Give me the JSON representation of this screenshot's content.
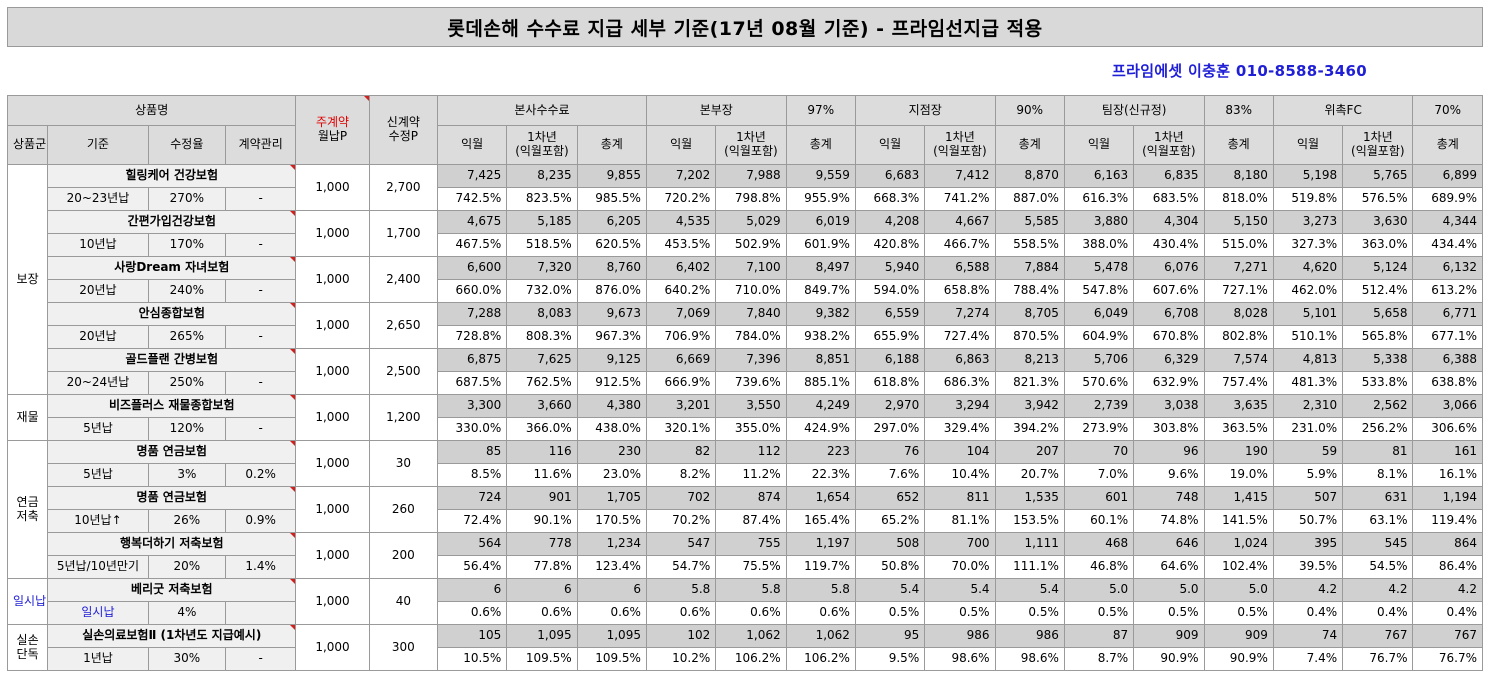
{
  "title": "롯데손해 수수료 지급 세부 기준(17년 08월 기준) - 프라임선지급 적용",
  "contact": "프라임에셋 이충훈 010-8588-3460",
  "header": {
    "product_group": "상품명",
    "subscription_line1": "주계약",
    "subscription_line2": "월납P",
    "new_contract_line1": "신계약",
    "new_contract_line2": "수정P",
    "tiers": [
      {
        "name": "본사수수료",
        "pct": ""
      },
      {
        "name": "본부장",
        "pct": "97%"
      },
      {
        "name": "지점장",
        "pct": "90%"
      },
      {
        "name": "팀장(신규정)",
        "pct": "83%"
      },
      {
        "name": "위촉FC",
        "pct": "70%"
      }
    ],
    "category": "상품군",
    "basis": "기준",
    "rate": "수정율",
    "contract_mgmt": "계약관리",
    "col_month": "익월",
    "col_first_year_line1": "1차년",
    "col_first_year_line2": "(익월포함)",
    "col_total": "총계"
  },
  "groups": [
    {
      "category": "보장",
      "products": [
        {
          "name": "힐링케어 건강보험",
          "basis": "20~23년납",
          "rate": "270%",
          "mgmt": "-",
          "premium": "1,000",
          "adjusted": "2,700",
          "amounts": [
            "7,425",
            "8,235",
            "9,855",
            "7,202",
            "7,988",
            "9,559",
            "6,683",
            "7,412",
            "8,870",
            "6,163",
            "6,835",
            "8,180",
            "5,198",
            "5,765",
            "6,899"
          ],
          "percents": [
            "742.5%",
            "823.5%",
            "985.5%",
            "720.2%",
            "798.8%",
            "955.9%",
            "668.3%",
            "741.2%",
            "887.0%",
            "616.3%",
            "683.5%",
            "818.0%",
            "519.8%",
            "576.5%",
            "689.9%"
          ]
        },
        {
          "name": "간편가입건강보험",
          "basis": "10년납",
          "rate": "170%",
          "mgmt": "-",
          "premium": "1,000",
          "adjusted": "1,700",
          "amounts": [
            "4,675",
            "5,185",
            "6,205",
            "4,535",
            "5,029",
            "6,019",
            "4,208",
            "4,667",
            "5,585",
            "3,880",
            "4,304",
            "5,150",
            "3,273",
            "3,630",
            "4,344"
          ],
          "percents": [
            "467.5%",
            "518.5%",
            "620.5%",
            "453.5%",
            "502.9%",
            "601.9%",
            "420.8%",
            "466.7%",
            "558.5%",
            "388.0%",
            "430.4%",
            "515.0%",
            "327.3%",
            "363.0%",
            "434.4%"
          ]
        },
        {
          "name": "사랑Dream 자녀보험",
          "basis": "20년납",
          "rate": "240%",
          "mgmt": "-",
          "premium": "1,000",
          "adjusted": "2,400",
          "amounts": [
            "6,600",
            "7,320",
            "8,760",
            "6,402",
            "7,100",
            "8,497",
            "5,940",
            "6,588",
            "7,884",
            "5,478",
            "6,076",
            "7,271",
            "4,620",
            "5,124",
            "6,132"
          ],
          "percents": [
            "660.0%",
            "732.0%",
            "876.0%",
            "640.2%",
            "710.0%",
            "849.7%",
            "594.0%",
            "658.8%",
            "788.4%",
            "547.8%",
            "607.6%",
            "727.1%",
            "462.0%",
            "512.4%",
            "613.2%"
          ]
        },
        {
          "name": "안심종합보험",
          "basis": "20년납",
          "rate": "265%",
          "mgmt": "-",
          "premium": "1,000",
          "adjusted": "2,650",
          "amounts": [
            "7,288",
            "8,083",
            "9,673",
            "7,069",
            "7,840",
            "9,382",
            "6,559",
            "7,274",
            "8,705",
            "6,049",
            "6,708",
            "8,028",
            "5,101",
            "5,658",
            "6,771"
          ],
          "percents": [
            "728.8%",
            "808.3%",
            "967.3%",
            "706.9%",
            "784.0%",
            "938.2%",
            "655.9%",
            "727.4%",
            "870.5%",
            "604.9%",
            "670.8%",
            "802.8%",
            "510.1%",
            "565.8%",
            "677.1%"
          ]
        },
        {
          "name": "골드플랜 간병보험",
          "basis": "20~24년납",
          "rate": "250%",
          "mgmt": "-",
          "premium": "1,000",
          "adjusted": "2,500",
          "amounts": [
            "6,875",
            "7,625",
            "9,125",
            "6,669",
            "7,396",
            "8,851",
            "6,188",
            "6,863",
            "8,213",
            "5,706",
            "6,329",
            "7,574",
            "4,813",
            "5,338",
            "6,388"
          ],
          "percents": [
            "687.5%",
            "762.5%",
            "912.5%",
            "666.9%",
            "739.6%",
            "885.1%",
            "618.8%",
            "686.3%",
            "821.3%",
            "570.6%",
            "632.9%",
            "757.4%",
            "481.3%",
            "533.8%",
            "638.8%"
          ]
        }
      ]
    },
    {
      "category": "재물",
      "products": [
        {
          "name": "비즈플러스 재물종합보험",
          "basis": "5년납",
          "rate": "120%",
          "mgmt": "-",
          "premium": "1,000",
          "adjusted": "1,200",
          "amounts": [
            "3,300",
            "3,660",
            "4,380",
            "3,201",
            "3,550",
            "4,249",
            "2,970",
            "3,294",
            "3,942",
            "2,739",
            "3,038",
            "3,635",
            "2,310",
            "2,562",
            "3,066"
          ],
          "percents": [
            "330.0%",
            "366.0%",
            "438.0%",
            "320.1%",
            "355.0%",
            "424.9%",
            "297.0%",
            "329.4%",
            "394.2%",
            "273.9%",
            "303.8%",
            "363.5%",
            "231.0%",
            "256.2%",
            "306.6%"
          ]
        }
      ]
    },
    {
      "category": "연금\n저축",
      "products": [
        {
          "name": "명품 연금보험",
          "basis": "5년납",
          "rate": "3%",
          "mgmt": "0.2%",
          "premium": "1,000",
          "adjusted": "30",
          "amounts": [
            "85",
            "116",
            "230",
            "82",
            "112",
            "223",
            "76",
            "104",
            "207",
            "70",
            "96",
            "190",
            "59",
            "81",
            "161"
          ],
          "percents": [
            "8.5%",
            "11.6%",
            "23.0%",
            "8.2%",
            "11.2%",
            "22.3%",
            "7.6%",
            "10.4%",
            "20.7%",
            "7.0%",
            "9.6%",
            "19.0%",
            "5.9%",
            "8.1%",
            "16.1%"
          ]
        },
        {
          "name": "명품 연금보험",
          "basis": "10년납↑",
          "rate": "26%",
          "mgmt": "0.9%",
          "premium": "1,000",
          "adjusted": "260",
          "amounts": [
            "724",
            "901",
            "1,705",
            "702",
            "874",
            "1,654",
            "652",
            "811",
            "1,535",
            "601",
            "748",
            "1,415",
            "507",
            "631",
            "1,194"
          ],
          "percents": [
            "72.4%",
            "90.1%",
            "170.5%",
            "70.2%",
            "87.4%",
            "165.4%",
            "65.2%",
            "81.1%",
            "153.5%",
            "60.1%",
            "74.8%",
            "141.5%",
            "50.7%",
            "63.1%",
            "119.4%"
          ]
        },
        {
          "name": "행복더하기 저축보험",
          "basis": "5년납/10년만기",
          "rate": "20%",
          "mgmt": "1.4%",
          "premium": "1,000",
          "adjusted": "200",
          "amounts": [
            "564",
            "778",
            "1,234",
            "547",
            "755",
            "1,197",
            "508",
            "700",
            "1,111",
            "468",
            "646",
            "1,024",
            "395",
            "545",
            "864"
          ],
          "percents": [
            "56.4%",
            "77.8%",
            "123.4%",
            "54.7%",
            "75.5%",
            "119.7%",
            "50.8%",
            "70.0%",
            "111.1%",
            "46.8%",
            "64.6%",
            "102.4%",
            "39.5%",
            "54.5%",
            "86.4%"
          ]
        }
      ]
    },
    {
      "category": "일시납",
      "blue": true,
      "products": [
        {
          "name": "베리굿 저축보험",
          "basis": "일시납",
          "rate": "4%",
          "mgmt": "",
          "premium": "1,000",
          "adjusted": "40",
          "amounts": [
            "6",
            "6",
            "6",
            "5.8",
            "5.8",
            "5.8",
            "5.4",
            "5.4",
            "5.4",
            "5.0",
            "5.0",
            "5.0",
            "4.2",
            "4.2",
            "4.2"
          ],
          "percents": [
            "0.6%",
            "0.6%",
            "0.6%",
            "0.6%",
            "0.6%",
            "0.6%",
            "0.5%",
            "0.5%",
            "0.5%",
            "0.5%",
            "0.5%",
            "0.5%",
            "0.4%",
            "0.4%",
            "0.4%"
          ]
        }
      ]
    },
    {
      "category": "실손\n단독",
      "products": [
        {
          "name": "실손의료보험Ⅱ (1차년도 지급예시)",
          "basis": "1년납",
          "rate": "30%",
          "mgmt": "-",
          "premium": "1,000",
          "adjusted": "300",
          "amounts": [
            "105",
            "1,095",
            "1,095",
            "102",
            "1,062",
            "1,062",
            "95",
            "986",
            "986",
            "87",
            "909",
            "909",
            "74",
            "767",
            "767"
          ],
          "percents": [
            "10.5%",
            "109.5%",
            "109.5%",
            "10.2%",
            "106.2%",
            "106.2%",
            "9.5%",
            "98.6%",
            "98.6%",
            "8.7%",
            "90.9%",
            "90.9%",
            "7.4%",
            "76.7%",
            "76.7%"
          ]
        }
      ]
    }
  ]
}
